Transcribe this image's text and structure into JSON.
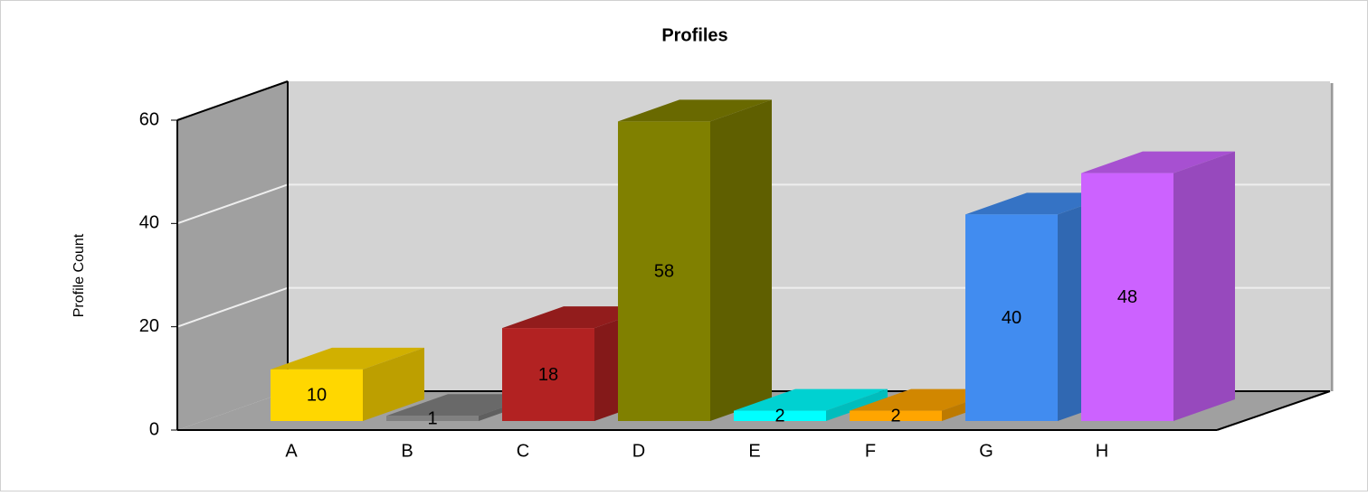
{
  "chart_data": {
    "type": "bar",
    "title": "Profiles",
    "y_label": "Profile Count",
    "categories": [
      "A",
      "B",
      "C",
      "D",
      "E",
      "F",
      "G",
      "H"
    ],
    "values": [
      10,
      1,
      18,
      58,
      2,
      2,
      40,
      48
    ],
    "colors": [
      "#ffd700",
      "#808080",
      "#b22222",
      "#808000",
      "#00ffff",
      "#ffa500",
      "#418cf0",
      "#cc62ff"
    ],
    "ylim": [
      0,
      60
    ],
    "yticks": [
      0,
      20,
      40,
      60
    ],
    "grid": true
  }
}
